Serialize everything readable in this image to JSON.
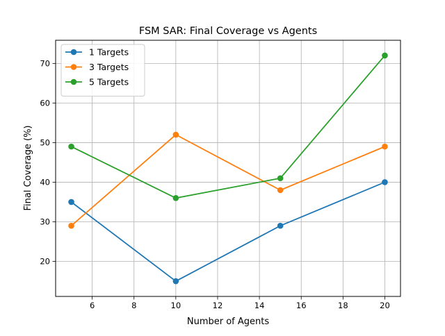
{
  "chart_data": {
    "type": "line",
    "title": "FSM SAR: Final Coverage vs Agents",
    "xlabel": "Number of Agents",
    "ylabel": "Final Coverage (%)",
    "x": [
      5,
      10,
      15,
      20
    ],
    "xlim": [
      4.25,
      20.75
    ],
    "ylim": [
      11.15,
      75.85
    ],
    "xticks": [
      6,
      8,
      10,
      12,
      14,
      16,
      18,
      20
    ],
    "yticks": [
      20,
      30,
      40,
      50,
      60,
      70
    ],
    "grid": true,
    "legend_position": "upper-left",
    "marker": "circle",
    "series": [
      {
        "name": "1 Targets",
        "color": "#1f77b4",
        "values": [
          35,
          15,
          29,
          40
        ]
      },
      {
        "name": "3 Targets",
        "color": "#ff7f0e",
        "values": [
          29,
          52,
          38,
          49
        ]
      },
      {
        "name": "5 Targets",
        "color": "#2ca02c",
        "values": [
          49,
          36,
          41,
          72
        ]
      }
    ]
  }
}
